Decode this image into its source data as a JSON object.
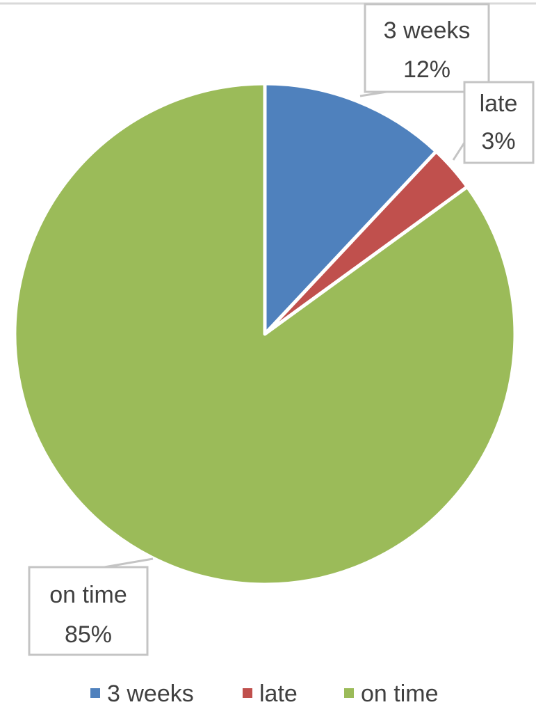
{
  "chart_data": {
    "type": "pie",
    "title": "",
    "categories": [
      "3 weeks",
      "late",
      "on time"
    ],
    "values": [
      12,
      3,
      85
    ],
    "data_labels": [
      {
        "category": "3 weeks",
        "percent": "12%"
      },
      {
        "category": "late",
        "percent": "3%"
      },
      {
        "category": "on time",
        "percent": "85%"
      }
    ],
    "colors": [
      "#4f81bd",
      "#c0504d",
      "#9bbb59"
    ],
    "legend": {
      "position": "bottom",
      "entries": [
        "3 weeks",
        "late",
        "on time"
      ]
    }
  }
}
